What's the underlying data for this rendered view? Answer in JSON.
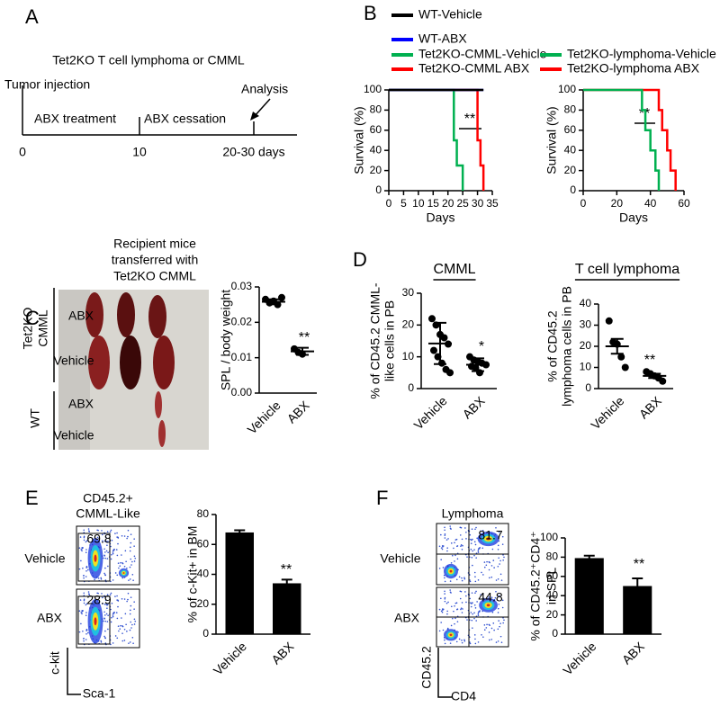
{
  "panel_letters": [
    "A",
    "B",
    "C",
    "D",
    "E",
    "F"
  ],
  "panel_a": {
    "title": "Tet2KO T cell lymphoma or CMML",
    "events": [
      "Tumor injection",
      "Analysis"
    ],
    "phases": [
      "ABX treatment",
      "ABX cessation"
    ],
    "timeline_labels": [
      0,
      10,
      "20-30 days"
    ]
  },
  "panel_c": {
    "header": [
      "Recipient mice",
      "transferred with",
      "Tet2KO CMML"
    ],
    "groups": [
      [
        "Tet2KO",
        "CMML"
      ],
      [
        "WT"
      ]
    ],
    "rows": [
      "ABX",
      "Vehicle",
      "ABX",
      "Vehicle"
    ]
  },
  "panel_e": {
    "title": [
      "CD45.2+",
      "CMML-Like"
    ],
    "rows": [
      "Vehicle",
      "ABX"
    ],
    "gates": [
      69.8,
      28.9
    ],
    "y_axis": "c-kit",
    "x_axis": "Sca-1"
  },
  "panel_f": {
    "title": "Lymphoma",
    "rows": [
      "Vehicle",
      "ABX"
    ],
    "gates": [
      81.7,
      44.8
    ],
    "y_axis": "CD45.2",
    "x_axis": "CD4"
  },
  "chart_data": [
    {
      "type": "line",
      "xlabel": "Days",
      "ylabel": [
        "Survival (%)"
      ],
      "xlim": [
        0,
        35
      ],
      "xticks": [
        0,
        5,
        10,
        15,
        20,
        25,
        30,
        35
      ],
      "ylim": [
        0,
        100
      ],
      "yticks": [
        0,
        20,
        40,
        60,
        80,
        100
      ],
      "annotations": [
        "**"
      ],
      "series": [
        {
          "name": "WT-Vehicle",
          "color": "#000000",
          "x": [
            0,
            32
          ],
          "values": [
            100,
            100
          ]
        },
        {
          "name": "WT-ABX",
          "color": "#0000ff",
          "x": [
            0,
            32
          ],
          "values": [
            100,
            100
          ]
        },
        {
          "name": "Tet2KO-CMML-Vehicle",
          "color": "#00b050",
          "x": [
            0,
            22,
            22,
            23,
            23,
            25,
            25
          ],
          "values": [
            100,
            100,
            50,
            50,
            25,
            25,
            0
          ]
        },
        {
          "name": "Tet2KO-CMML ABX",
          "color": "#ff0000",
          "x": [
            0,
            30,
            30,
            31,
            31,
            32,
            32
          ],
          "values": [
            100,
            100,
            50,
            50,
            25,
            25,
            0
          ]
        }
      ]
    },
    {
      "type": "line",
      "xlabel": "Days",
      "ylabel": [
        "Survival (%)"
      ],
      "xlim": [
        0,
        60
      ],
      "xticks": [
        0,
        20,
        40,
        60
      ],
      "ylim": [
        0,
        100
      ],
      "yticks": [
        0,
        20,
        40,
        60,
        80,
        100
      ],
      "annotations": [
        "**"
      ],
      "series": [
        {
          "name": "Tet2KO-lymphoma-Vehicle",
          "color": "#00b050",
          "x": [
            0,
            35,
            35,
            37,
            37,
            40,
            40,
            43,
            43,
            45,
            45
          ],
          "values": [
            100,
            100,
            80,
            80,
            60,
            60,
            40,
            40,
            20,
            20,
            0
          ]
        },
        {
          "name": "Tet2KO-lymphoma ABX",
          "color": "#ff0000",
          "x": [
            0,
            45,
            45,
            47,
            47,
            50,
            50,
            52,
            52,
            55,
            55
          ],
          "values": [
            100,
            100,
            80,
            80,
            60,
            60,
            40,
            40,
            20,
            20,
            0
          ]
        }
      ]
    },
    {
      "type": "dot",
      "ylabel": [
        "SPL / body weight"
      ],
      "categories": [
        "Vehicle",
        "ABX"
      ],
      "ylim": [
        0,
        0.03
      ],
      "yticks": [
        {
          "value": 0,
          "label": "0.00"
        },
        {
          "value": 0.01,
          "label": "0.01"
        },
        {
          "value": 0.02,
          "label": "0.02"
        },
        {
          "value": 0.03,
          "label": "0.03"
        }
      ],
      "points": [
        [
          0.0265,
          0.0255,
          0.026,
          0.025,
          0.027
        ],
        [
          0.0125,
          0.0115,
          0.011
        ]
      ],
      "mean": [
        0.0258,
        0.0118
      ],
      "error": [
        0.0007,
        0.001
      ],
      "color": "#000000",
      "annotations": [
        "**"
      ]
    },
    {
      "type": "dot",
      "title": "CMML",
      "ylabel": [
        "% of CD45.2 CMML-",
        "like cells in PB"
      ],
      "categories": [
        "Vehicle",
        "ABX"
      ],
      "ylim": [
        0,
        30
      ],
      "yticks": [
        0,
        10,
        20,
        30
      ],
      "points": [
        [
          22,
          20,
          17,
          16,
          14,
          12,
          10,
          8,
          6,
          5
        ],
        [
          10,
          9,
          8.5,
          8,
          7.5,
          7,
          6.5,
          5
        ]
      ],
      "mean": [
        14.2,
        7.5
      ],
      "error": [
        6.5,
        2
      ],
      "color": "#000000",
      "annotations": [
        "*"
      ]
    },
    {
      "type": "dot",
      "title": "T cell lymphoma",
      "ylabel": [
        "% of CD45.2",
        "lymphoma cells in PB"
      ],
      "categories": [
        "Vehicle",
        "ABX"
      ],
      "ylim": [
        0,
        40
      ],
      "yticks": [
        0,
        10,
        20,
        30,
        40
      ],
      "points": [
        [
          32,
          22,
          21,
          15,
          10
        ],
        [
          8,
          7,
          6,
          5,
          3.5
        ]
      ],
      "mean": [
        20,
        6
      ],
      "error": [
        3.5,
        1
      ],
      "color": "#000000",
      "annotations": [
        "**"
      ]
    },
    {
      "type": "bar",
      "ylabel": [
        "% of c-Kit+ in BM"
      ],
      "categories": [
        "Vehicle",
        "ABX"
      ],
      "ylim": [
        0,
        80
      ],
      "yticks": [
        0,
        20,
        40,
        60,
        80
      ],
      "values": [
        68,
        34
      ],
      "errors": [
        1.5,
        2.5
      ],
      "color": "#000000",
      "annotations": [
        "**"
      ]
    },
    {
      "type": "bar",
      "ylabel": [
        "% of CD45.2⁺CD4⁺",
        "in SPL"
      ],
      "categories": [
        "Vehicle",
        "ABX"
      ],
      "ylim": [
        0,
        100
      ],
      "yticks": [
        0,
        20,
        40,
        60,
        80,
        100
      ],
      "values": [
        79,
        50
      ],
      "errors": [
        2.5,
        8
      ],
      "color": "#000000",
      "annotations": [
        "**"
      ]
    }
  ]
}
